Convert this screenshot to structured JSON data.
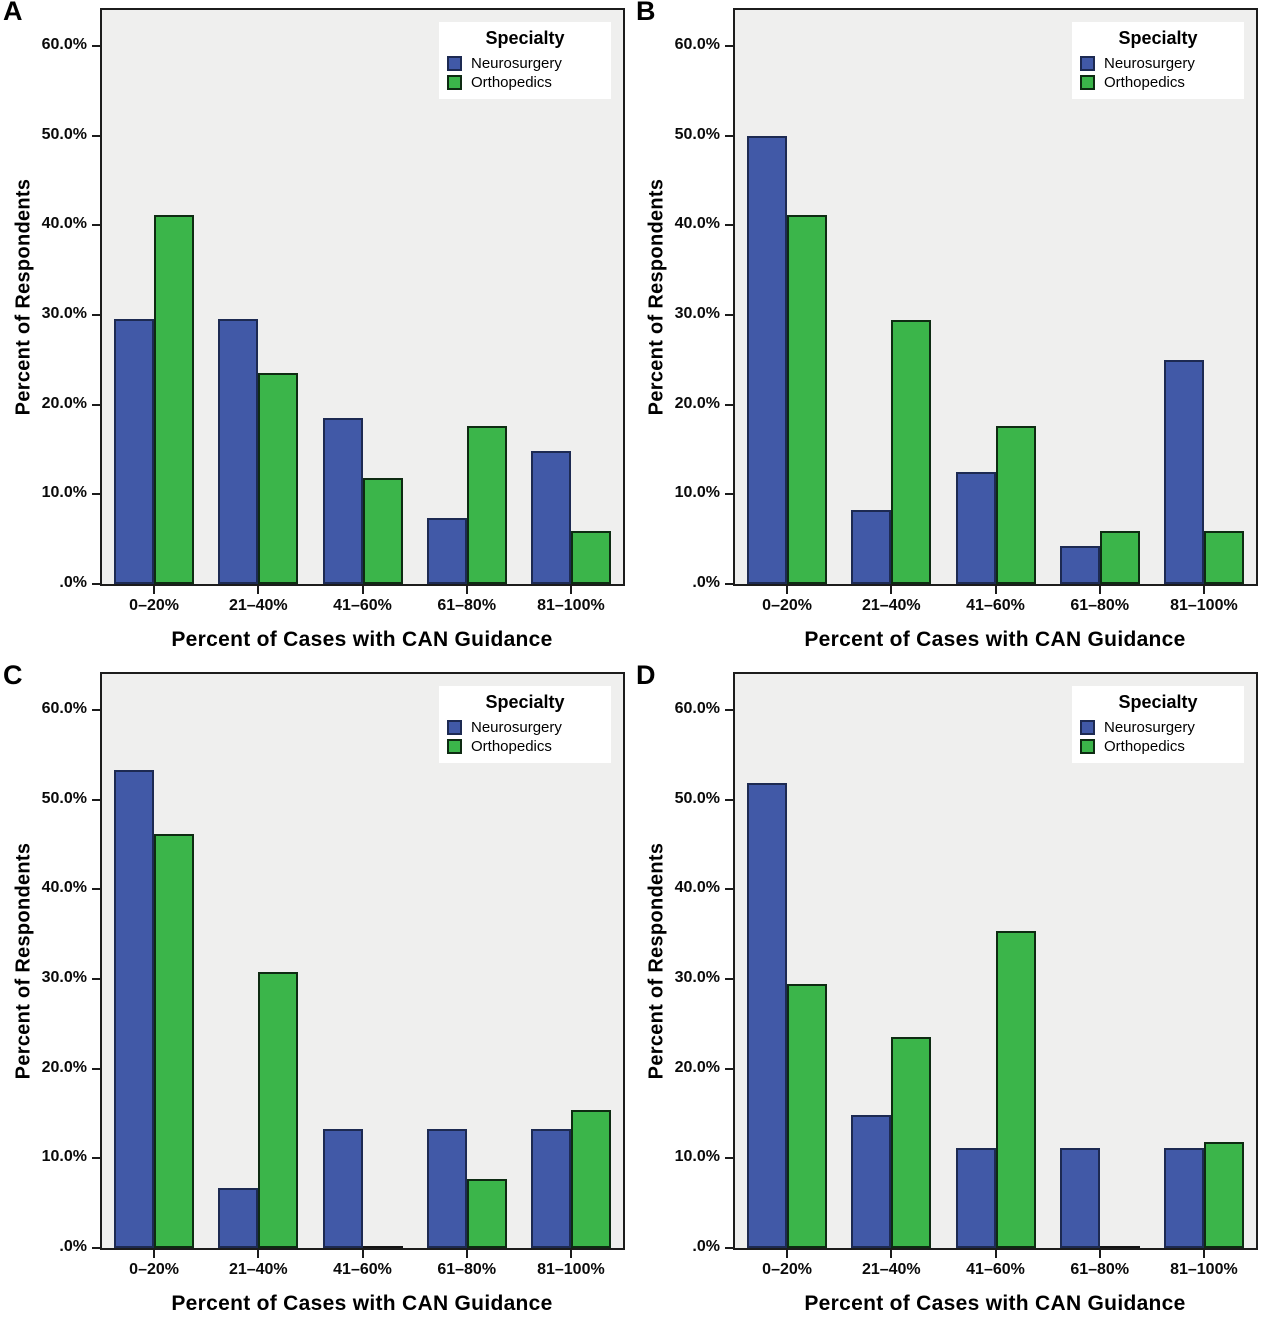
{
  "figure": {
    "x_title": "Percent of Cases with CAN Guidance",
    "y_title": "Percent of Respondents",
    "legend": {
      "title": "Specialty",
      "items": [
        {
          "label": "Neurosurgery",
          "color": "#4159a7",
          "border": "#1d2a52"
        },
        {
          "label": "Orthopedics",
          "color": "#3bb54a",
          "border": "#0e2b12"
        }
      ],
      "position": "top-right-inside"
    },
    "y_axis": {
      "max": 64,
      "tick_values": [
        60,
        50,
        40,
        30,
        20,
        10,
        0
      ],
      "tick_labels": [
        "60.0%",
        "50.0%",
        "40.0%",
        "30.0%",
        "20.0%",
        "10.0%",
        ".0%"
      ]
    },
    "colors": {
      "neurosurgery_fill": "#4159a7",
      "neurosurgery_border": "#1d2a52",
      "orthopedics_fill": "#3bb54a",
      "orthopedics_border": "#0e2b12",
      "plot_background": "#efefee",
      "frame": "#1c1c1c",
      "page_background": "#ffffff"
    },
    "grid": "off"
  },
  "chart_data": [
    {
      "panel": "A",
      "type": "bar",
      "categories": [
        "0–20%",
        "21–40%",
        "41–60%",
        "61–80%",
        "81–100%"
      ],
      "series": [
        {
          "name": "Neurosurgery",
          "values": [
            29.6,
            29.6,
            18.5,
            7.4,
            14.8
          ]
        },
        {
          "name": "Orthopedics",
          "values": [
            41.2,
            23.5,
            11.8,
            17.6,
            5.9
          ]
        }
      ],
      "xlabel": "Percent of Cases with CAN Guidance",
      "ylabel": "Percent of Respondents",
      "ylim": [
        0,
        64
      ],
      "legend_position": "top-right-inside"
    },
    {
      "panel": "B",
      "type": "bar",
      "categories": [
        "0–20%",
        "21–40%",
        "41–60%",
        "61–80%",
        "81–100%"
      ],
      "series": [
        {
          "name": "Neurosurgery",
          "values": [
            50.0,
            8.3,
            12.5,
            4.2,
            25.0
          ]
        },
        {
          "name": "Orthopedics",
          "values": [
            41.2,
            29.4,
            17.6,
            5.9,
            5.9
          ]
        }
      ],
      "xlabel": "Percent of Cases with CAN Guidance",
      "ylabel": "Percent of Respondents",
      "ylim": [
        0,
        64
      ],
      "legend_position": "top-right-inside"
    },
    {
      "panel": "C",
      "type": "bar",
      "categories": [
        "0–20%",
        "21–40%",
        "41–60%",
        "61–80%",
        "81–100%"
      ],
      "series": [
        {
          "name": "Neurosurgery",
          "values": [
            53.3,
            6.7,
            13.3,
            13.3,
            13.3
          ]
        },
        {
          "name": "Orthopedics",
          "values": [
            46.2,
            30.8,
            0.0,
            7.7,
            15.4
          ]
        }
      ],
      "xlabel": "Percent of Cases with CAN Guidance",
      "ylabel": "Percent of Respondents",
      "ylim": [
        0,
        64
      ],
      "legend_position": "top-right-inside"
    },
    {
      "panel": "D",
      "type": "bar",
      "categories": [
        "0–20%",
        "21–40%",
        "41–60%",
        "61–80%",
        "81–100%"
      ],
      "series": [
        {
          "name": "Neurosurgery",
          "values": [
            51.9,
            14.8,
            11.1,
            11.1,
            11.1
          ]
        },
        {
          "name": "Orthopedics",
          "values": [
            29.4,
            23.5,
            35.3,
            0.0,
            11.8
          ]
        }
      ],
      "xlabel": "Percent of Cases with CAN Guidance",
      "ylabel": "Percent of Respondents",
      "ylim": [
        0,
        64
      ],
      "legend_position": "top-right-inside"
    }
  ]
}
